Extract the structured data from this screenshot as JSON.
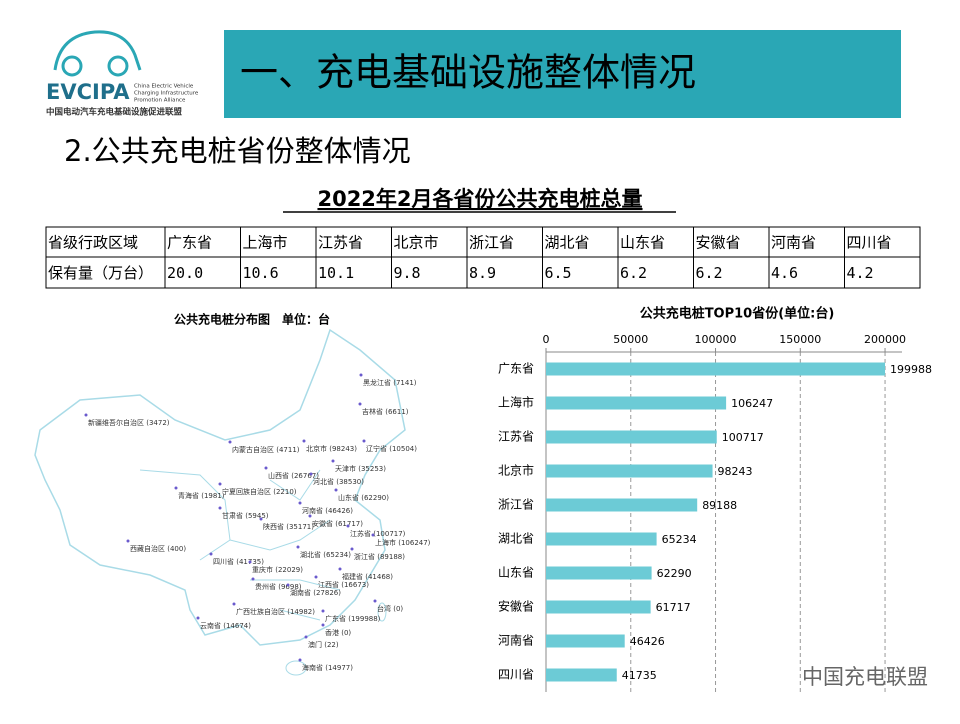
{
  "logo": {
    "name": "EVCIPA",
    "english": [
      "China Electric Vehicle",
      "Charging Infrastructure",
      "Promotion Alliance"
    ],
    "chinese": "中国电动汽车充电基础设施促进联盟"
  },
  "header": {
    "title": "一、充电基础设施整体情况"
  },
  "section_title": "2.公共充电桩省份整体情况",
  "table": {
    "title": "2022年2月各省份公共充电桩总量",
    "rows": [
      [
        "省级行政区域",
        "广东省",
        "上海市",
        "江苏省",
        "北京市",
        "浙江省",
        "湖北省",
        "山东省",
        "安徽省",
        "河南省",
        "四川省"
      ],
      [
        "保有量（万台）",
        "20.0",
        "10.6",
        "10.1",
        "9.8",
        "8.9",
        "6.5",
        "6.2",
        "6.2",
        "4.6",
        "4.2"
      ]
    ]
  },
  "map": {
    "title": "公共充电桩分布图　单位：台",
    "labels": [
      "黑龙江省 (7141)",
      "吉林省 (6611)",
      "新疆维吾尔自治区 (3472)",
      "内蒙古自治区 (4711)",
      "北京市 (98243)",
      "辽宁省 (10504)",
      "天津市 (35253)",
      "山西省 (26767)",
      "河北省 (38530)",
      "宁夏回族自治区 (2210)",
      "山东省 (62290)",
      "青海省 (1981)",
      "甘肃省 (5945)",
      "河南省 (46426)",
      "陕西省 (35171)",
      "安徽省 (61717)",
      "江苏省 (100717)",
      "上海市 (106247)",
      "西藏自治区 (400)",
      "湖北省 (65234)",
      "浙江省 (89188)",
      "四川省 (41735)",
      "重庆市 (22029)",
      "福建省 (41468)",
      "江西省 (16673)",
      "贵州省 (9698)",
      "湖南省 (27826)",
      "广西壮族自治区 (14982)",
      "广东省 (199988)",
      "台湾 (0)",
      "云南省 (14674)",
      "香港 (0)",
      "澳门 (22)",
      "海南省 (14977)"
    ]
  },
  "chart_data": {
    "type": "bar",
    "orientation": "horizontal",
    "title": "公共充电桩TOP10省份(单位:台)",
    "categories": [
      "广东省",
      "上海市",
      "江苏省",
      "北京市",
      "浙江省",
      "湖北省",
      "山东省",
      "安徽省",
      "河南省",
      "四川省"
    ],
    "values": [
      199988,
      106247,
      100717,
      98243,
      89188,
      65234,
      62290,
      61717,
      46426,
      41735
    ],
    "color": "#6ccbd6",
    "xlim": [
      0,
      210000
    ],
    "xticks": [
      0,
      50000,
      100000,
      150000,
      200000
    ],
    "grid": true
  },
  "watermark": "中国充电联盟"
}
